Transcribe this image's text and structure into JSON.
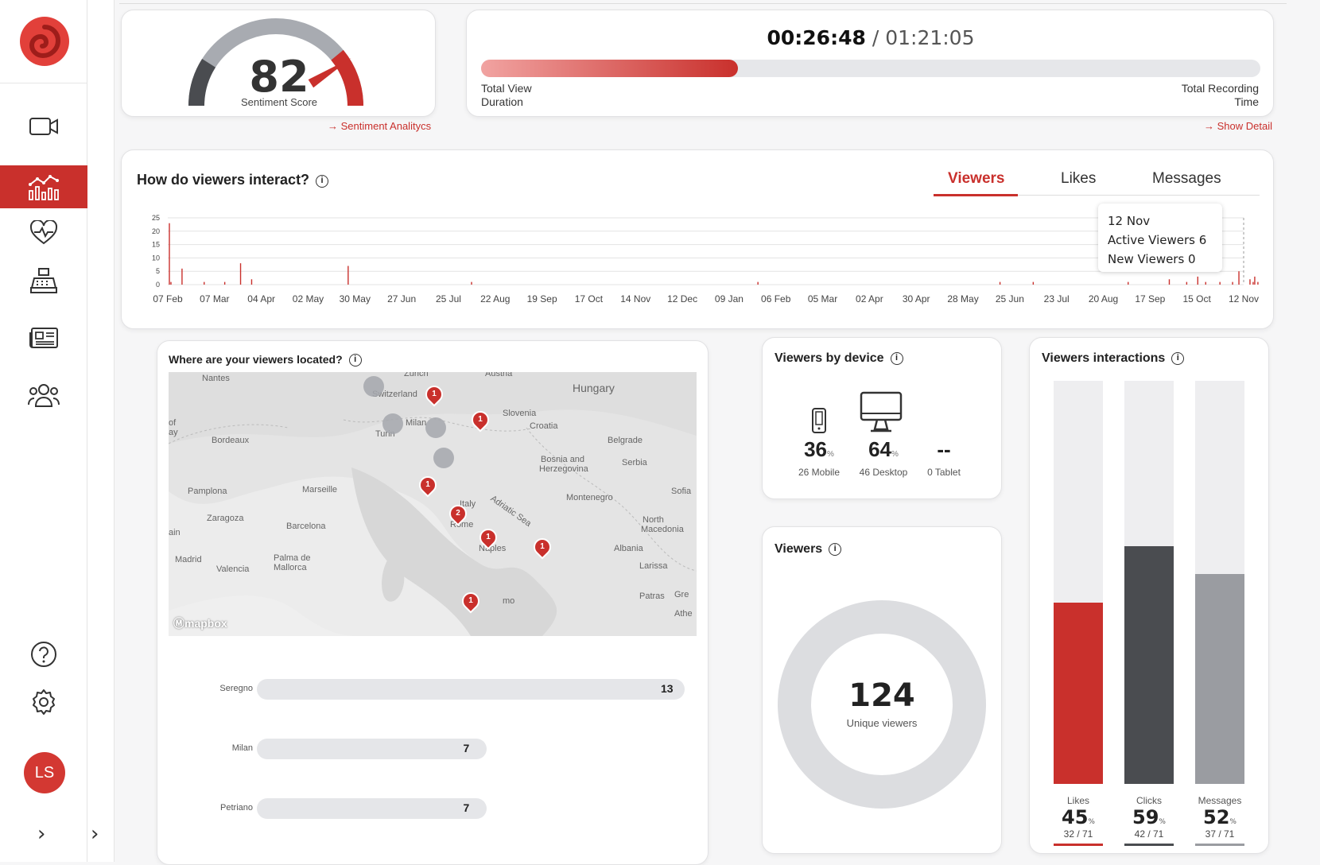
{
  "sidebar": {
    "avatar_initials": "LS",
    "expand_icon": "›"
  },
  "sentiment": {
    "score": "82",
    "label": "Sentiment Score",
    "link": "Sentiment Analitycs",
    "gauge_fraction": 0.82
  },
  "recording": {
    "viewed": "00:26:48",
    "separator": " / ",
    "total": "01:21:05",
    "progress": 0.33,
    "left_label_1": "Total View",
    "left_label_2": "Duration",
    "right_label_1": "Total Recording",
    "right_label_2": "Time",
    "link": "Show Detail"
  },
  "interact": {
    "title": "How do viewers interact?",
    "tabs": [
      "Viewers",
      "Likes",
      "Messages"
    ],
    "tooltip": {
      "date": "12 Nov",
      "active": "Active Viewers 6",
      "new": "New Viewers 0"
    }
  },
  "chart_data": {
    "type": "bar",
    "y_ticks": [
      "25",
      "20",
      "15",
      "10",
      "5",
      "0"
    ],
    "ylim": [
      0,
      25
    ],
    "x_ticks": [
      "07 Feb",
      "07 Mar",
      "04 Apr",
      "02 May",
      "30 May",
      "27 Jun",
      "25 Jul",
      "22 Aug",
      "19 Sep",
      "17 Oct",
      "14 Nov",
      "12 Dec",
      "09 Jan",
      "06 Feb",
      "05 Mar",
      "02 Apr",
      "30 Apr",
      "28 May",
      "25 Jun",
      "23 Jul",
      "20 Aug",
      "17 Sep",
      "15 Oct",
      "12 Nov"
    ],
    "series": [
      {
        "values": [
          [
            0,
            23
          ],
          [
            1,
            1
          ],
          [
            8,
            6
          ],
          [
            22,
            1
          ],
          [
            35,
            1
          ],
          [
            45,
            8
          ],
          [
            52,
            2
          ],
          [
            113,
            7
          ],
          [
            191,
            1
          ],
          [
            372,
            1
          ],
          [
            525,
            1
          ],
          [
            546,
            1
          ],
          [
            606,
            1
          ],
          [
            632,
            2
          ],
          [
            643,
            1
          ],
          [
            650,
            3
          ],
          [
            655,
            1
          ],
          [
            664,
            1
          ],
          [
            672,
            1
          ],
          [
            676,
            5
          ],
          [
            683,
            2
          ],
          [
            685,
            1
          ],
          [
            686,
            3
          ],
          [
            688,
            1
          ]
        ]
      }
    ],
    "series_color": "#c9302c",
    "x_day_span": [
      0,
      679
    ]
  },
  "map": {
    "title": "Where are your viewers located?",
    "attribution": "mapbox",
    "labels": [
      "Nantes",
      "Zurich",
      "Austria",
      "Switzerland",
      "Hungary",
      "Slovenia",
      "Milan",
      "Turin",
      "Croatia",
      "Bordeaux",
      "Belgrade",
      "Bosnia and",
      "Herzegovina",
      "Serbia",
      "Pamplona",
      "Marseille",
      "Italy",
      "Adriatic Sea",
      "Montenegro",
      "Sofia",
      "Zaragoza",
      "Barcelona",
      "Rome",
      "North",
      "Macedonia",
      "Naples",
      "Albania",
      "Madrid",
      "Valencia",
      "Palma de",
      "Mallorca",
      "Larissa",
      "Patras",
      "Gre",
      "Athe",
      "mo",
      "ain",
      "of",
      "ay"
    ],
    "pins": [
      "1",
      "1",
      "1",
      "2",
      "1",
      "1",
      "1"
    ]
  },
  "cities": [
    {
      "name": "Seregno",
      "count": "13",
      "frac": 1
    },
    {
      "name": "Milan",
      "count": "7",
      "frac": 0.538
    },
    {
      "name": "Petriano",
      "count": "7",
      "frac": 0.538
    }
  ],
  "device": {
    "title": "Viewers by device",
    "items": [
      {
        "value": "36",
        "pct": "%",
        "label": "26 Mobile",
        "icon": "mobile-icon"
      },
      {
        "value": "64",
        "pct": "%",
        "label": "46 Desktop",
        "icon": "desktop-icon"
      },
      {
        "value": "--",
        "pct": "",
        "label": "0 Tablet",
        "icon": ""
      }
    ]
  },
  "viewers": {
    "title": "Viewers",
    "count": "124",
    "label": "Unique viewers"
  },
  "interactions": {
    "title": "Viewers interactions",
    "items": [
      {
        "label": "Likes",
        "pct": "45",
        "sym": "%",
        "frac": "32 / 71",
        "value": 0.45,
        "color": "#c9302c"
      },
      {
        "label": "Clicks",
        "pct": "59",
        "sym": "%",
        "frac": "42 / 71",
        "value": 0.59,
        "color": "#4a4c50"
      },
      {
        "label": "Messages",
        "pct": "52",
        "sym": "%",
        "frac": "37 / 71",
        "value": 0.52,
        "color": "#9a9ca1"
      }
    ]
  }
}
